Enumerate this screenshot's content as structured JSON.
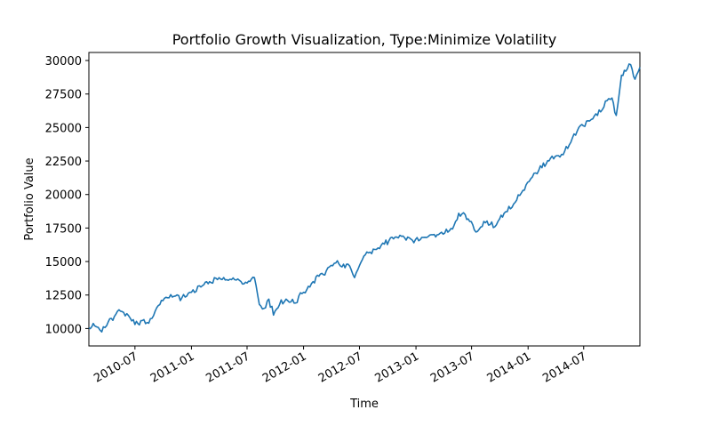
{
  "chart_data": {
    "type": "line",
    "title": "Portfolio Growth Visualization, Type:Minimize Volatility",
    "xlabel": "Time",
    "ylabel": "Portfolio Value",
    "xlim": [
      "2010-02-01",
      "2014-12-31"
    ],
    "ylim": [
      8700,
      30600
    ],
    "grid": false,
    "y_ticks": [
      10000,
      12500,
      15000,
      17500,
      20000,
      22500,
      25000,
      27500,
      30000
    ],
    "x_ticks": [
      "2010-07",
      "2011-01",
      "2011-07",
      "2012-01",
      "2012-07",
      "2013-01",
      "2013-07",
      "2014-01",
      "2014-07"
    ],
    "series": [
      {
        "color": "#1f77b4",
        "x": [
          "2010-02-01",
          "2010-02-20",
          "2010-03-15",
          "2010-04-05",
          "2010-04-25",
          "2010-05-10",
          "2010-05-25",
          "2010-06-15",
          "2010-07-01",
          "2010-07-25",
          "2010-08-15",
          "2010-09-05",
          "2010-09-25",
          "2010-10-15",
          "2010-11-05",
          "2010-12-01",
          "2011-01-01",
          "2011-02-01",
          "2011-03-01",
          "2011-04-01",
          "2011-05-01",
          "2011-06-01",
          "2011-07-01",
          "2011-07-25",
          "2011-08-10",
          "2011-08-25",
          "2011-09-10",
          "2011-09-25",
          "2011-10-15",
          "2011-11-05",
          "2011-12-01",
          "2012-01-01",
          "2012-02-01",
          "2012-03-15",
          "2012-04-15",
          "2012-05-05",
          "2012-05-25",
          "2012-06-15",
          "2012-07-01",
          "2012-07-20",
          "2012-08-20",
          "2012-09-20",
          "2012-10-20",
          "2012-11-20",
          "2012-12-20",
          "2013-01-20",
          "2013-02-20",
          "2013-03-20",
          "2013-04-20",
          "2013-05-05",
          "2013-05-20",
          "2013-06-10",
          "2013-06-25",
          "2013-07-15",
          "2013-08-15",
          "2013-09-15",
          "2013-10-15",
          "2013-11-15",
          "2013-12-15",
          "2014-01-15",
          "2014-02-15",
          "2014-03-15",
          "2014-04-15",
          "2014-05-15",
          "2014-06-15",
          "2014-07-15",
          "2014-08-15",
          "2014-09-15",
          "2014-10-01",
          "2014-10-15",
          "2014-11-01",
          "2014-11-15",
          "2014-12-01",
          "2014-12-15",
          "2014-12-31"
        ],
        "values": [
          10050,
          10200,
          9750,
          10500,
          10900,
          11400,
          11200,
          10800,
          10300,
          10600,
          10400,
          11300,
          12100,
          12300,
          12400,
          12300,
          12700,
          13100,
          13500,
          13800,
          13600,
          13700,
          13400,
          13800,
          11800,
          11500,
          12200,
          11000,
          11800,
          12200,
          11900,
          12700,
          13500,
          14300,
          14900,
          14600,
          14800,
          13800,
          14700,
          15500,
          15900,
          16300,
          16700,
          16900,
          16600,
          16800,
          17000,
          17100,
          17300,
          17700,
          18600,
          18500,
          18000,
          17200,
          17900,
          17600,
          18600,
          19300,
          20300,
          21300,
          22000,
          22700,
          22800,
          23700,
          25000,
          25500,
          25900,
          27000,
          27200,
          25900,
          28900,
          29200,
          29700,
          28600,
          29500
        ]
      }
    ]
  }
}
